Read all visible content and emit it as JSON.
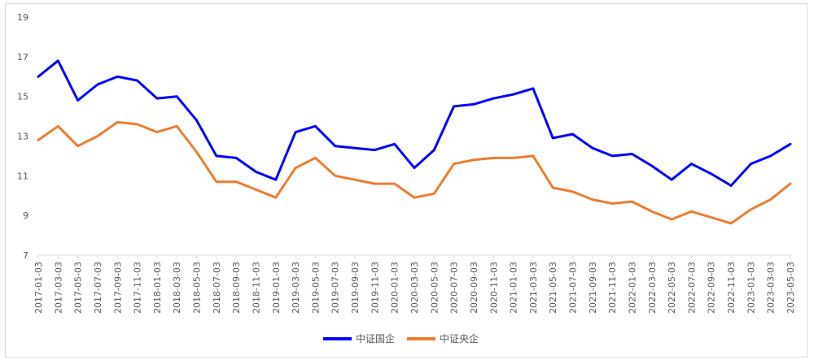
{
  "chart_data": {
    "type": "line",
    "title": "",
    "xlabel": "",
    "ylabel": "",
    "ylim": [
      7,
      19
    ],
    "yticks": [
      7,
      9,
      11,
      13,
      15,
      17,
      19
    ],
    "grid": false,
    "legend_position": "bottom",
    "categories": [
      "2017-01-03",
      "2017-03-03",
      "2017-05-03",
      "2017-07-03",
      "2017-09-03",
      "2017-11-03",
      "2018-01-03",
      "2018-03-03",
      "2018-05-03",
      "2018-07-03",
      "2018-09-03",
      "2018-11-03",
      "2019-01-03",
      "2019-03-03",
      "2019-05-03",
      "2019-07-03",
      "2019-09-03",
      "2019-11-03",
      "2020-01-03",
      "2020-03-03",
      "2020-05-03",
      "2020-07-03",
      "2020-09-03",
      "2020-11-03",
      "2021-01-03",
      "2021-03-03",
      "2021-05-03",
      "2021-07-03",
      "2021-09-03",
      "2021-11-03",
      "2022-01-03",
      "2022-03-03",
      "2022-05-03",
      "2022-07-03",
      "2022-09-03",
      "2022-11-03",
      "2023-01-03",
      "2023-03-03",
      "2023-05-03"
    ],
    "series": [
      {
        "name": "中证国企",
        "color": "#0000ff",
        "values": [
          16.0,
          16.8,
          14.8,
          15.6,
          16.0,
          15.8,
          14.9,
          15.0,
          13.8,
          12.0,
          11.9,
          11.2,
          10.8,
          13.2,
          13.5,
          12.5,
          12.4,
          12.3,
          12.6,
          11.4,
          12.3,
          14.5,
          14.6,
          14.9,
          15.1,
          15.4,
          12.9,
          13.1,
          12.4,
          12.0,
          12.1,
          11.5,
          10.8,
          11.6,
          11.1,
          10.5,
          11.6,
          12.0,
          12.6
        ]
      },
      {
        "name": "中证央企",
        "color": "#ed7d31",
        "values": [
          12.8,
          13.5,
          12.5,
          13.0,
          13.7,
          13.6,
          13.2,
          13.5,
          12.2,
          10.7,
          10.7,
          10.3,
          9.9,
          11.4,
          11.9,
          11.0,
          10.8,
          10.6,
          10.6,
          9.9,
          10.1,
          11.6,
          11.8,
          11.9,
          11.9,
          12.0,
          10.4,
          10.2,
          9.8,
          9.6,
          9.7,
          9.2,
          8.8,
          9.2,
          8.9,
          8.6,
          9.3,
          9.8,
          10.6
        ]
      }
    ]
  }
}
